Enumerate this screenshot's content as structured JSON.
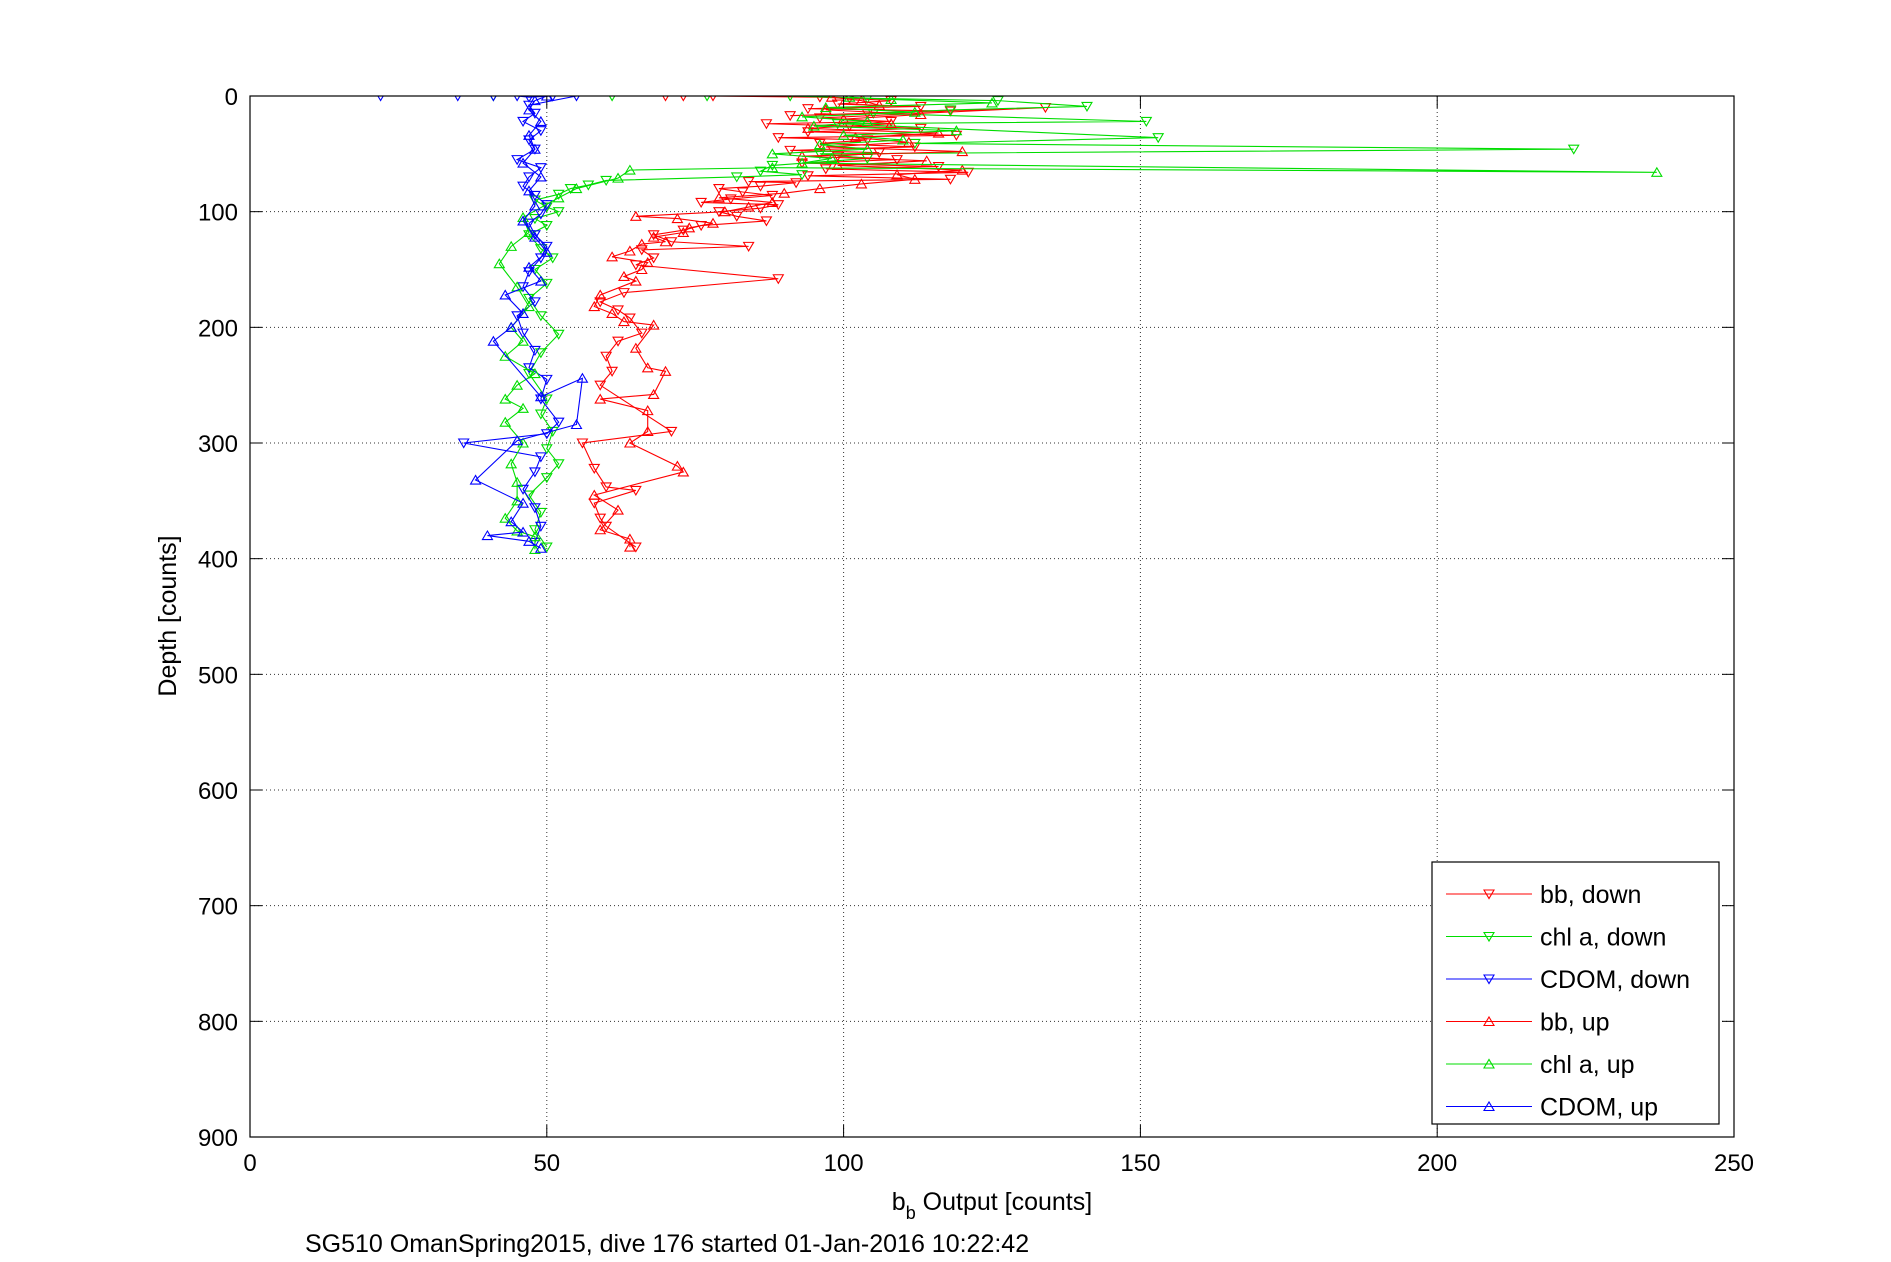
{
  "chart_data": {
    "type": "scatter",
    "caption": "SG510 OmanSpring2015, dive 176 started 01-Jan-2016 10:22:42",
    "xlabel": {
      "base": "b",
      "subscript": "b",
      "rest": " Output [counts]"
    },
    "ylabel": "Depth [counts]",
    "xlim": [
      0,
      250
    ],
    "ylim": [
      900,
      0
    ],
    "y_reversed": true,
    "grid": true,
    "legend_position": "bottom-right",
    "xticks": [
      "0",
      "50",
      "100",
      "150",
      "200",
      "250"
    ],
    "yticks": [
      "0",
      "100",
      "200",
      "300",
      "400",
      "500",
      "600",
      "700",
      "800",
      "900"
    ],
    "series": [
      {
        "name": "bb, down",
        "color": "#ff0000",
        "marker": "triangle-down",
        "points": [
          [
            70,
            0
          ],
          [
            73,
            0
          ],
          [
            78,
            0
          ],
          [
            96,
            1
          ],
          [
            101,
            2
          ],
          [
            108,
            4
          ],
          [
            99,
            7
          ],
          [
            113,
            9
          ],
          [
            94,
            11
          ],
          [
            118,
            13
          ],
          [
            104,
            15
          ],
          [
            91,
            17
          ],
          [
            134,
            10
          ],
          [
            96,
            19
          ],
          [
            108,
            22
          ],
          [
            87,
            24
          ],
          [
            101,
            26
          ],
          [
            113,
            28
          ],
          [
            94,
            31
          ],
          [
            119,
            34
          ],
          [
            89,
            36
          ],
          [
            104,
            38
          ],
          [
            96,
            41
          ],
          [
            112,
            44
          ],
          [
            91,
            47
          ],
          [
            106,
            49
          ],
          [
            99,
            52
          ],
          [
            109,
            55
          ],
          [
            93,
            58
          ],
          [
            116,
            61
          ],
          [
            97,
            63
          ],
          [
            121,
            66
          ],
          [
            94,
            69
          ],
          [
            118,
            72
          ],
          [
            84,
            74
          ],
          [
            92,
            75
          ],
          [
            86,
            78
          ],
          [
            79,
            80
          ],
          [
            83,
            83
          ],
          [
            88,
            86
          ],
          [
            81,
            89
          ],
          [
            76,
            92
          ],
          [
            89,
            94
          ],
          [
            86,
            97
          ],
          [
            79,
            100
          ],
          [
            82,
            104
          ],
          [
            87,
            108
          ],
          [
            76,
            112
          ],
          [
            73,
            116
          ],
          [
            68,
            120
          ],
          [
            71,
            126
          ],
          [
            84,
            130
          ],
          [
            66,
            133
          ],
          [
            68,
            140
          ],
          [
            65,
            146
          ],
          [
            89,
            158
          ],
          [
            63,
            170
          ],
          [
            59,
            178
          ],
          [
            62,
            185
          ],
          [
            64,
            192
          ],
          [
            66,
            205
          ],
          [
            62,
            212
          ],
          [
            60,
            225
          ],
          [
            61,
            238
          ],
          [
            59,
            250
          ],
          [
            71,
            290
          ],
          [
            56,
            300
          ],
          [
            58,
            322
          ],
          [
            60,
            338
          ],
          [
            65,
            341
          ],
          [
            58,
            352
          ],
          [
            59,
            365
          ],
          [
            60,
            372
          ],
          [
            65,
            390
          ]
        ]
      },
      {
        "name": "chl a, down",
        "color": "#00dd00",
        "marker": "triangle-down",
        "points": [
          [
            41,
            0
          ],
          [
            61,
            0
          ],
          [
            77,
            0
          ],
          [
            91,
            0
          ],
          [
            104,
            2
          ],
          [
            126,
            4
          ],
          [
            141,
            9
          ],
          [
            118,
            12
          ],
          [
            105,
            15
          ],
          [
            151,
            22
          ],
          [
            99,
            24
          ],
          [
            153,
            36
          ],
          [
            112,
            41
          ],
          [
            223,
            46
          ],
          [
            96,
            50
          ],
          [
            104,
            54
          ],
          [
            88,
            60
          ],
          [
            86,
            65
          ],
          [
            93,
            68
          ],
          [
            82,
            70
          ],
          [
            60,
            73
          ],
          [
            57,
            77
          ],
          [
            54,
            80
          ],
          [
            52,
            85
          ],
          [
            48,
            90
          ],
          [
            50,
            96
          ],
          [
            52,
            100
          ],
          [
            48,
            106
          ],
          [
            50,
            112
          ],
          [
            47,
            120
          ],
          [
            49,
            132
          ],
          [
            51,
            140
          ],
          [
            48,
            150
          ],
          [
            50,
            162
          ],
          [
            47,
            175
          ],
          [
            49,
            190
          ],
          [
            52,
            206
          ],
          [
            49,
            222
          ],
          [
            47,
            240
          ],
          [
            50,
            262
          ],
          [
            49,
            275
          ],
          [
            51,
            290
          ],
          [
            50,
            305
          ],
          [
            52,
            318
          ],
          [
            50,
            330
          ],
          [
            47,
            345
          ],
          [
            49,
            360
          ],
          [
            48,
            375
          ],
          [
            50,
            390
          ]
        ]
      },
      {
        "name": "CDOM, down",
        "color": "#0000ff",
        "marker": "triangle-down",
        "points": [
          [
            22,
            0
          ],
          [
            35,
            0
          ],
          [
            41,
            0
          ],
          [
            45,
            0
          ],
          [
            47,
            1
          ],
          [
            51,
            0
          ],
          [
            55,
            0
          ],
          [
            47,
            8
          ],
          [
            48,
            15
          ],
          [
            46,
            22
          ],
          [
            49,
            30
          ],
          [
            47,
            38
          ],
          [
            48,
            46
          ],
          [
            45,
            55
          ],
          [
            49,
            62
          ],
          [
            47,
            70
          ],
          [
            46,
            78
          ],
          [
            48,
            86
          ],
          [
            50,
            94
          ],
          [
            49,
            102
          ],
          [
            47,
            110
          ],
          [
            48,
            120
          ],
          [
            50,
            130
          ],
          [
            49,
            140
          ],
          [
            47,
            152
          ],
          [
            46,
            165
          ],
          [
            48,
            178
          ],
          [
            45,
            190
          ],
          [
            46,
            205
          ],
          [
            48,
            220
          ],
          [
            47,
            235
          ],
          [
            50,
            245
          ],
          [
            49,
            262
          ],
          [
            52,
            282
          ],
          [
            50,
            292
          ],
          [
            36,
            300
          ],
          [
            49,
            312
          ],
          [
            48,
            325
          ],
          [
            46,
            340
          ],
          [
            48,
            356
          ],
          [
            49,
            372
          ],
          [
            48,
            386
          ]
        ]
      },
      {
        "name": "bb, up",
        "color": "#ff0000",
        "marker": "triangle-up",
        "points": [
          [
            64,
            390
          ],
          [
            64,
            383
          ],
          [
            59,
            375
          ],
          [
            62,
            358
          ],
          [
            58,
            345
          ],
          [
            73,
            325
          ],
          [
            72,
            320
          ],
          [
            64,
            300
          ],
          [
            67,
            290
          ],
          [
            67,
            272
          ],
          [
            59,
            262
          ],
          [
            68,
            258
          ],
          [
            70,
            238
          ],
          [
            67,
            235
          ],
          [
            65,
            218
          ],
          [
            68,
            198
          ],
          [
            63,
            195
          ],
          [
            61,
            188
          ],
          [
            58,
            182
          ],
          [
            59,
            172
          ],
          [
            65,
            160
          ],
          [
            63,
            156
          ],
          [
            66,
            150
          ],
          [
            67,
            144
          ],
          [
            61,
            139
          ],
          [
            64,
            134
          ],
          [
            66,
            128
          ],
          [
            70,
            126
          ],
          [
            68,
            122
          ],
          [
            73,
            118
          ],
          [
            74,
            114
          ],
          [
            78,
            110
          ],
          [
            72,
            106
          ],
          [
            65,
            104
          ],
          [
            80,
            100
          ],
          [
            84,
            96
          ],
          [
            88,
            92
          ],
          [
            79,
            88
          ],
          [
            90,
            84
          ],
          [
            96,
            80
          ],
          [
            103,
            76
          ],
          [
            112,
            72
          ],
          [
            109,
            68
          ],
          [
            120,
            64
          ],
          [
            99,
            60
          ],
          [
            114,
            56
          ],
          [
            93,
            52
          ],
          [
            120,
            48
          ],
          [
            97,
            44
          ],
          [
            111,
            40
          ],
          [
            102,
            36
          ],
          [
            116,
            32
          ],
          [
            94,
            28
          ],
          [
            108,
            24
          ],
          [
            100,
            20
          ],
          [
            113,
            16
          ],
          [
            97,
            12
          ],
          [
            106,
            8
          ],
          [
            103,
            4
          ],
          [
            98,
            1
          ]
        ]
      },
      {
        "name": "chl a, up",
        "color": "#00dd00",
        "marker": "triangle-up",
        "points": [
          [
            48,
            392
          ],
          [
            48,
            381
          ],
          [
            45,
            376
          ],
          [
            43,
            365
          ],
          [
            45,
            350
          ],
          [
            45,
            334
          ],
          [
            44,
            318
          ],
          [
            46,
            300
          ],
          [
            43,
            282
          ],
          [
            46,
            270
          ],
          [
            43,
            262
          ],
          [
            45,
            250
          ],
          [
            48,
            240
          ],
          [
            43,
            225
          ],
          [
            46,
            212
          ],
          [
            44,
            200
          ],
          [
            47,
            182
          ],
          [
            45,
            165
          ],
          [
            42,
            145
          ],
          [
            44,
            130
          ],
          [
            47,
            118
          ],
          [
            46,
            105
          ],
          [
            52,
            88
          ],
          [
            55,
            80
          ],
          [
            62,
            71
          ],
          [
            64,
            64
          ],
          [
            88,
            62
          ],
          [
            237,
            66
          ],
          [
            93,
            58
          ],
          [
            98,
            54
          ],
          [
            88,
            50
          ],
          [
            104,
            46
          ],
          [
            96,
            42
          ],
          [
            110,
            38
          ],
          [
            100,
            34
          ],
          [
            119,
            30
          ],
          [
            95,
            26
          ],
          [
            104,
            22
          ],
          [
            93,
            18
          ],
          [
            112,
            14
          ],
          [
            97,
            10
          ],
          [
            125,
            6
          ],
          [
            108,
            3
          ],
          [
            101,
            1
          ]
        ]
      },
      {
        "name": "CDOM, up",
        "color": "#0000ff",
        "marker": "triangle-up",
        "points": [
          [
            49,
            391
          ],
          [
            47,
            385
          ],
          [
            40,
            380
          ],
          [
            46,
            377
          ],
          [
            44,
            368
          ],
          [
            46,
            352
          ],
          [
            38,
            332
          ],
          [
            45,
            298
          ],
          [
            55,
            284
          ],
          [
            56,
            244
          ],
          [
            49,
            260
          ],
          [
            41,
            212
          ],
          [
            44,
            200
          ],
          [
            46,
            188
          ],
          [
            43,
            172
          ],
          [
            49,
            160
          ],
          [
            47,
            148
          ],
          [
            50,
            135
          ],
          [
            48,
            122
          ],
          [
            46,
            108
          ],
          [
            48,
            95
          ],
          [
            47,
            82
          ],
          [
            49,
            70
          ],
          [
            46,
            58
          ],
          [
            48,
            46
          ],
          [
            47,
            34
          ],
          [
            49,
            22
          ],
          [
            47,
            12
          ],
          [
            48,
            4
          ],
          [
            50,
            0
          ]
        ]
      }
    ]
  }
}
